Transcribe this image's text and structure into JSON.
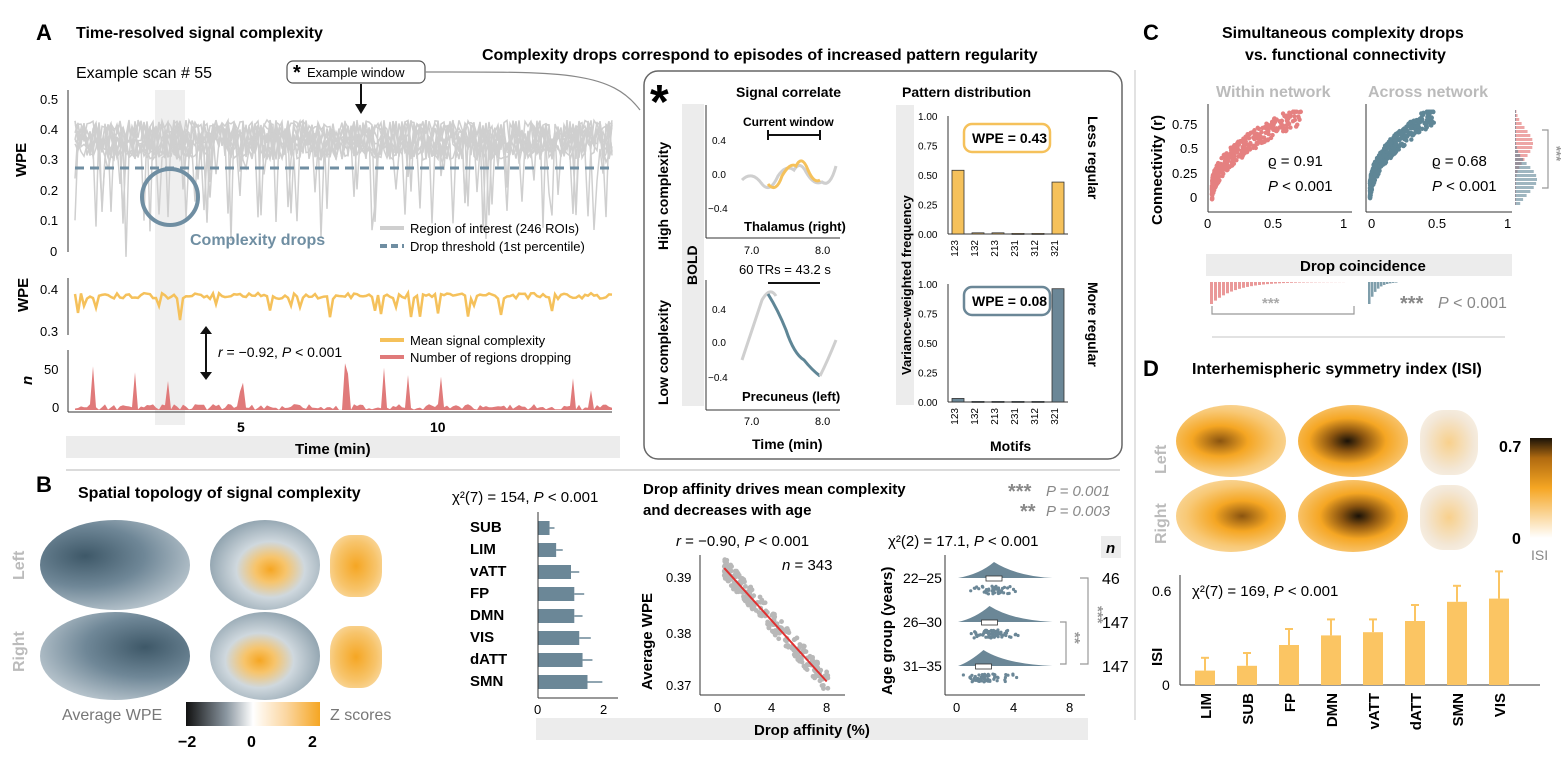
{
  "panel_letters": [
    "A",
    "B",
    "C",
    "D"
  ],
  "panel_A": {
    "title": "Time-resolved signal complexity",
    "scan_label": "Example scan # 55",
    "example_window": "Example window",
    "drops_label": "Complexity drops",
    "top_ylabel": "WPE",
    "mid_ylabel": "WPE",
    "bot_ylabel": "n",
    "top_yticks": [
      "0.5",
      "0.4",
      "0.3",
      "0.2",
      "0.1",
      "0"
    ],
    "mid_yticks": [
      "0.4",
      "0.3"
    ],
    "bot_yticks": [
      "50",
      "0"
    ],
    "xticks": [
      "5",
      "10"
    ],
    "xlabel": "Time (min)",
    "legend_top": [
      "Region of interest (246 ROIs)",
      "Drop threshold (1st percentile)"
    ],
    "legend_bottom": [
      "Mean signal complexity",
      "Number of regions dropping"
    ],
    "corr_r": "r",
    "corr_rest": " = −0.92, ",
    "corr_p": "P",
    "corr_pval": " < 0.001"
  },
  "panel_star": {
    "heading": "Complexity drops correspond to episodes of increased pattern regularity",
    "star": "*",
    "signal_title": "Signal correlate",
    "pattern_title": "Pattern distribution",
    "high_label": "High complexity",
    "low_label": "Low complexity",
    "bold_label": "BOLD",
    "current_window": "Current window",
    "trs_label": "60 TRs = 43.2 s",
    "region_high": "Thalamus (right)",
    "region_low": "Precuneus (left)",
    "signal_yticks": [
      "0.4",
      "0.0",
      "−0.4"
    ],
    "signal_xticks": [
      "7.0",
      "8.0"
    ],
    "time_label": "Time (min)",
    "freq_ylabel": "Variance-weighted frequency",
    "freq_yticks": [
      "1.00",
      "0.75",
      "0.50",
      "0.25",
      "0.00"
    ],
    "motifs_label": "Motifs",
    "wpe_high": "WPE = 0.43",
    "wpe_low": "WPE = 0.08",
    "less_regular": "Less regular",
    "more_regular": "More regular"
  },
  "panel_B": {
    "title": "Spatial topology of signal complexity",
    "left": "Left",
    "right": "Right",
    "cbar_left": "Average WPE",
    "cbar_right": "Z scores",
    "cbar_ticks": [
      "−2",
      "0",
      "2"
    ],
    "chi_text": "χ²(7) = 154, ",
    "chi_p": "P",
    "chi_pval": " < 0.001",
    "affinity_title_1": "Drop affinity drives mean complexity",
    "affinity_title_2": "and decreases with age",
    "sig3": "***",
    "sig3_text": "P = 0.001",
    "sig2": "**",
    "sig2_text": "P = 0.003",
    "scatter_r": "r",
    "scatter_stats": " = −0.90, ",
    "scatter_p": "P",
    "scatter_pval": " < 0.001",
    "scatter_n": "n",
    "scatter_nval": " = 343",
    "scatter_ylabel": "Average WPE",
    "scatter_yticks": [
      "0.39",
      "0.38",
      "0.37"
    ],
    "xticks_048": [
      "0",
      "4",
      "8"
    ],
    "drop_affinity": "Drop affinity (%)",
    "age_chi": "χ²(2) = 17.1, ",
    "age_p": "P",
    "age_pval": " < 0.001",
    "age_ylabel": "Age group (years)",
    "n_header": "n",
    "bar_xticks": [
      "0",
      "2"
    ]
  },
  "panel_C": {
    "title_1": "Simultaneous complexity drops",
    "title_2": "vs. functional connectivity",
    "within": "Within network",
    "across": "Across network",
    "ylabel": "Connectivity (r)",
    "yticks": [
      "0.75",
      "0.5",
      "0.25",
      "0"
    ],
    "xticks": [
      "0",
      "0.5",
      "1"
    ],
    "rho_within": "ϱ = 0.91",
    "rho_across": "ϱ = 0.68",
    "p_label": "P",
    "p_value": " < 0.001",
    "xlabel": "Drop coincidence",
    "sig": "***",
    "legend_sig": "***",
    "legend_p": "P",
    "legend_pval": " < 0.001"
  },
  "panel_D": {
    "title": "Interhemispheric symmetry index (ISI)",
    "left": "Left",
    "right": "Right",
    "cbar_max": "0.7",
    "cbar_min": "0",
    "cbar_label": "ISI",
    "chi_text": "χ²(7) = 169, ",
    "chi_p": "P",
    "chi_pval": " < 0.001",
    "ylabel": "ISI",
    "yticks": [
      "0.6",
      "0"
    ]
  },
  "colors": {
    "roi": "#cfcfcf",
    "threshold": "#6f8ea2",
    "mean_wpe": "#f5c15b",
    "regions": "#e07a7a",
    "slate": "#6b8797",
    "orange": "#f5a623",
    "within_pink": "#e58080",
    "across_blue": "#5f8696",
    "axis_band": "#ececec"
  },
  "chart_data": [
    {
      "id": "network_wpe",
      "type": "bar",
      "orientation": "horizontal",
      "categories": [
        "SUB",
        "LIM",
        "vATT",
        "FP",
        "DMN",
        "VIS",
        "dATT",
        "SMN"
      ],
      "values": [
        0.35,
        0.55,
        1.0,
        1.1,
        1.1,
        1.25,
        1.35,
        1.5
      ],
      "errors": [
        0.15,
        0.2,
        0.25,
        0.3,
        0.25,
        0.35,
        0.3,
        0.45
      ],
      "xlim": [
        0,
        2.5
      ]
    },
    {
      "id": "isi_by_network",
      "type": "bar",
      "categories": [
        "LIM",
        "SUB",
        "FP",
        "DMN",
        "vATT",
        "dATT",
        "SMN",
        "VIS"
      ],
      "values": [
        0.09,
        0.12,
        0.25,
        0.31,
        0.33,
        0.4,
        0.52,
        0.54
      ],
      "errors": [
        0.08,
        0.08,
        0.1,
        0.1,
        0.08,
        0.1,
        0.1,
        0.17
      ],
      "ylim": [
        0,
        0.7
      ]
    },
    {
      "id": "pattern_high",
      "type": "bar",
      "categories": [
        "123",
        "132",
        "213",
        "231",
        "312",
        "321"
      ],
      "values": [
        0.54,
        0.01,
        0.01,
        0.005,
        0.005,
        0.44
      ],
      "ylim": [
        0,
        1.0
      ]
    },
    {
      "id": "pattern_low",
      "type": "bar",
      "categories": [
        "123",
        "132",
        "213",
        "231",
        "312",
        "321"
      ],
      "values": [
        0.03,
        0.005,
        0.005,
        0.005,
        0.005,
        0.96
      ],
      "ylim": [
        0,
        1.0
      ]
    },
    {
      "id": "age_groups",
      "type": "scatter",
      "categories": [
        "22–25",
        "26–30",
        "31–35"
      ],
      "n": [
        "46",
        "147",
        "147"
      ],
      "medians": [
        2.6,
        2.3,
        1.9
      ],
      "xlim": [
        0,
        8
      ]
    },
    {
      "id": "affinity_scatter",
      "type": "scatter",
      "xlim": [
        0,
        8.5
      ],
      "ylim": [
        0.368,
        0.393
      ],
      "fit": {
        "x": [
          0.8,
          7.5
        ],
        "y": [
          0.3915,
          0.3705
        ]
      }
    }
  ]
}
